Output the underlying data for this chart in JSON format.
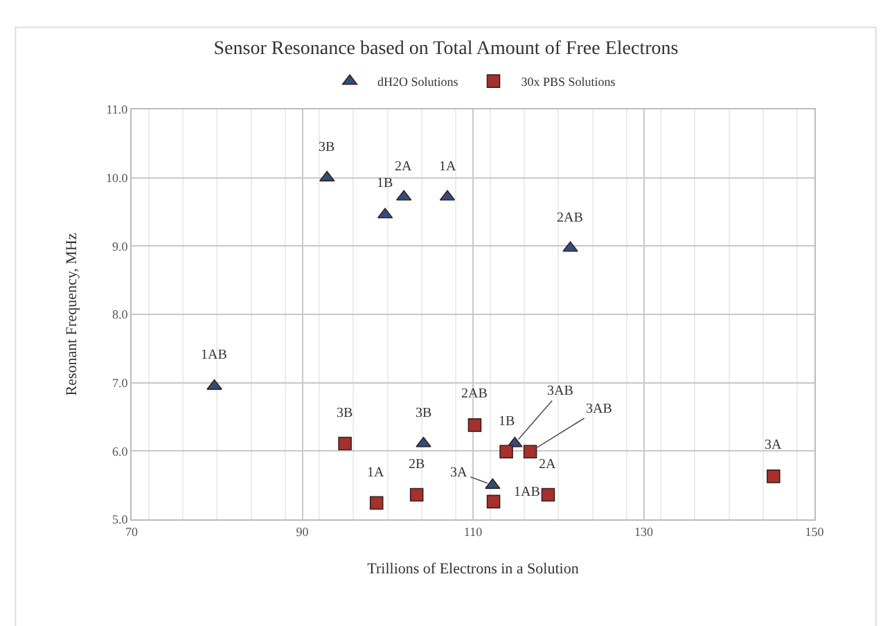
{
  "chart_data": {
    "type": "scatter",
    "title": "Sensor Resonance based on Total Amount of Free Electrons",
    "xlabel": "Trillions of Electrons in a Solution",
    "ylabel": "Resonant Frequency, MHz",
    "xlim": [
      70,
      150
    ],
    "xticks": [
      70,
      90,
      110,
      130,
      150
    ],
    "ylim": [
      5,
      11
    ],
    "yticks": [
      {
        "value": 5,
        "label": "5.0"
      },
      {
        "value": 6,
        "label": "6.0"
      },
      {
        "value": 7,
        "label": "7.0"
      },
      {
        "value": 8,
        "label": "8.0"
      },
      {
        "value": 9,
        "label": "9.0"
      },
      {
        "value": 10,
        "label": "10.0"
      },
      {
        "value": 11,
        "label": "11.0"
      }
    ],
    "grid": true,
    "legend": "top",
    "series": [
      {
        "name": "dH2O Solutions",
        "color": "#2e4e7e",
        "marker": "triangle",
        "x": [
          79.7,
          92.9,
          99.7,
          101.9,
          107.0,
          121.4,
          104.2,
          112.3,
          114.9
        ],
        "values": [
          6.95,
          10.0,
          9.46,
          9.72,
          9.72,
          8.97,
          6.11,
          5.5,
          6.11
        ]
      },
      {
        "name": "30x PBS Solutions",
        "color": "#a5302e",
        "marker": "square",
        "x": [
          95.0,
          98.7,
          103.4,
          110.2,
          113.9,
          116.7,
          112.4,
          118.8,
          145.2
        ],
        "values": [
          6.11,
          5.24,
          5.36,
          6.38,
          5.99,
          5.99,
          5.26,
          5.36,
          5.63
        ]
      }
    ],
    "annotations": [
      {
        "text": "1AB",
        "x": 79.7,
        "y": 6.95
      },
      {
        "text": "3B",
        "x": 92.9,
        "y": 10.0
      },
      {
        "text": "1B",
        "x": 99.7,
        "y": 9.46
      },
      {
        "text": "2A",
        "x": 101.9,
        "y": 9.72
      },
      {
        "text": "1A",
        "x": 107.0,
        "y": 9.72
      },
      {
        "text": "2AB",
        "x": 121.4,
        "y": 8.97
      },
      {
        "text": "3B",
        "x": 104.2,
        "y": 6.11
      },
      {
        "text": "3A",
        "x": 112.3,
        "y": 5.5
      },
      {
        "text": "3AB",
        "x": 114.9,
        "y": 6.11
      },
      {
        "text": "3B",
        "x": 95.0,
        "y": 6.11
      },
      {
        "text": "1A",
        "x": 98.7,
        "y": 5.24
      },
      {
        "text": "2B",
        "x": 103.4,
        "y": 5.36
      },
      {
        "text": "2AB",
        "x": 110.2,
        "y": 6.38
      },
      {
        "text": "1B",
        "x": 113.9,
        "y": 5.99
      },
      {
        "text": "3AB",
        "x": 116.7,
        "y": 5.99
      },
      {
        "text": "1AB",
        "x": 112.4,
        "y": 5.26
      },
      {
        "text": "2A",
        "x": 118.8,
        "y": 5.36
      },
      {
        "text": "3A",
        "x": 145.2,
        "y": 5.63
      }
    ]
  }
}
